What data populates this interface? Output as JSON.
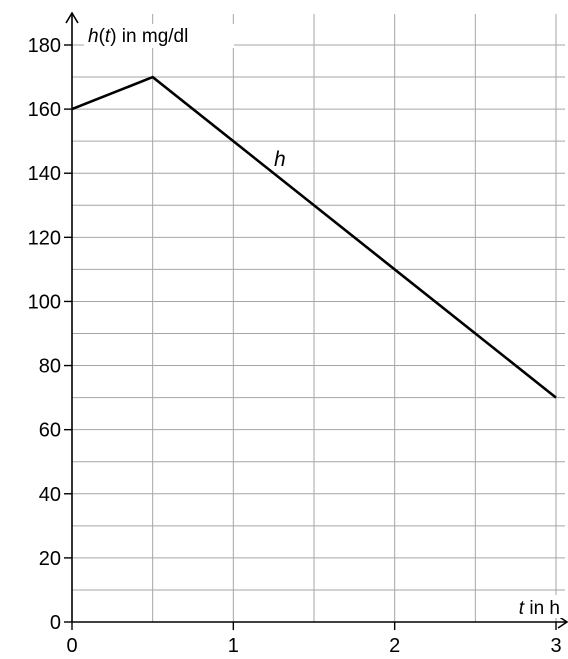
{
  "chart_data": {
    "type": "line",
    "x_axis": {
      "min": 0,
      "max": 3,
      "minor_step": 0.5,
      "ticks": [
        0,
        1,
        2,
        3
      ],
      "tick_labels": [
        "0",
        "1",
        "2",
        "3"
      ],
      "label_var": "t",
      "label_rest": " in h"
    },
    "y_axis": {
      "min": 0,
      "max": 185,
      "minor_step": 10,
      "ticks": [
        0,
        20,
        40,
        60,
        80,
        100,
        120,
        140,
        160,
        180
      ],
      "tick_labels": [
        "0",
        "20",
        "40",
        "60",
        "80",
        "100",
        "120",
        "140",
        "160",
        "180"
      ],
      "label_func": "h",
      "label_open": "(",
      "label_var": "t",
      "label_close": ")",
      "label_rest": " in mg/dl"
    },
    "grid": true,
    "series": [
      {
        "name": "h",
        "color": "#000000",
        "points": [
          {
            "x": 0,
            "y": 160
          },
          {
            "x": 0.5,
            "y": 170
          },
          {
            "x": 3,
            "y": 70
          }
        ]
      }
    ]
  }
}
